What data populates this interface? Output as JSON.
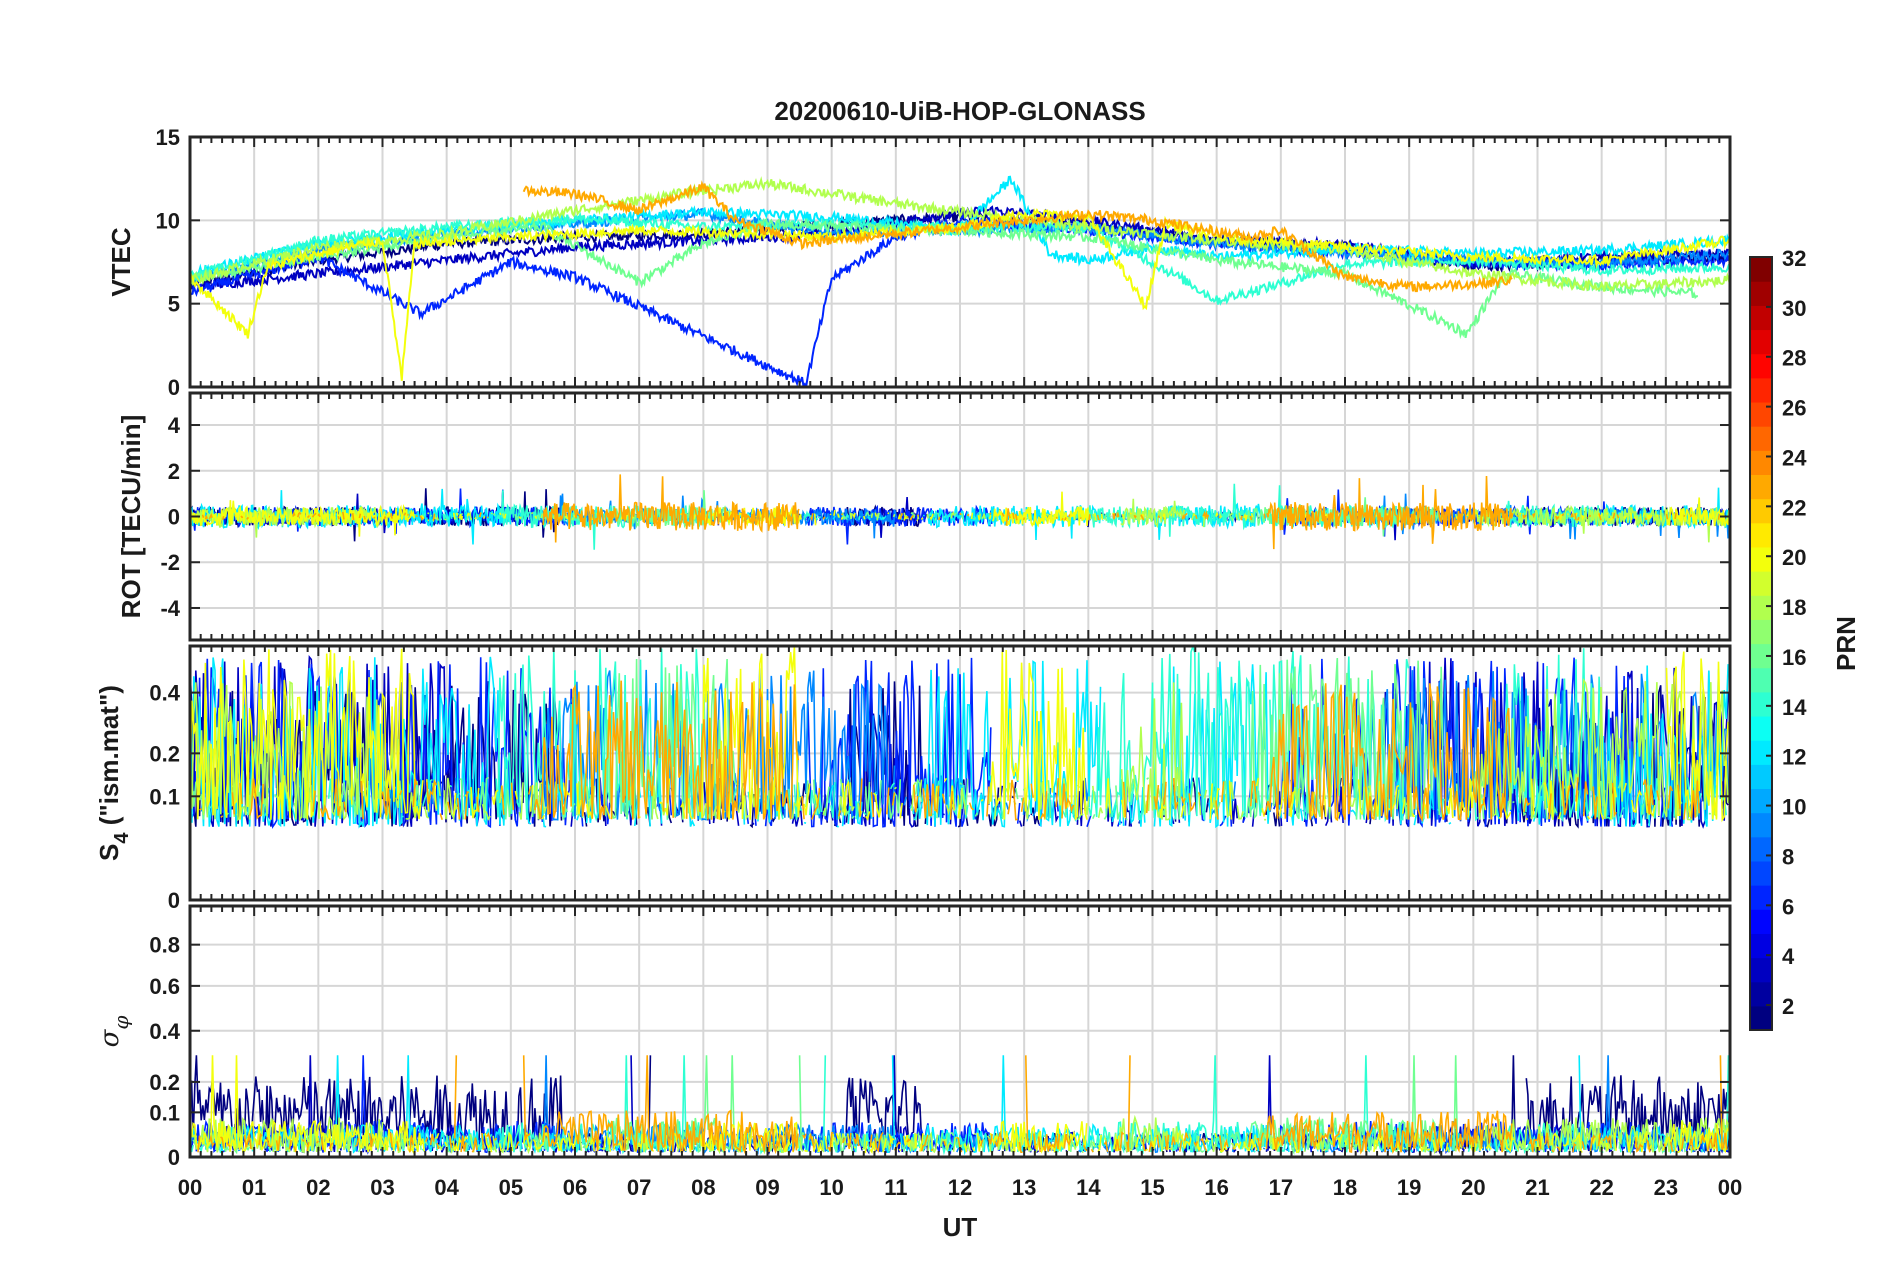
{
  "chart_data": {
    "title": "20200610-UiB-HOP-GLONASS",
    "type": "line",
    "x_axis": {
      "label": "UT",
      "range": [
        0,
        24
      ],
      "tick_labels": [
        "00",
        "01",
        "02",
        "03",
        "04",
        "05",
        "06",
        "07",
        "08",
        "09",
        "10",
        "11",
        "12",
        "13",
        "14",
        "15",
        "16",
        "17",
        "18",
        "19",
        "20",
        "21",
        "22",
        "23",
        "00"
      ]
    },
    "colorbar": {
      "label": "PRN",
      "range": [
        1,
        32
      ],
      "tick_values": [
        2,
        4,
        6,
        8,
        10,
        12,
        14,
        16,
        18,
        20,
        22,
        24,
        26,
        28,
        30,
        32
      ],
      "tick_labels": [
        "2",
        "4",
        "6",
        "8",
        "10",
        "12",
        "14",
        "16",
        "18",
        "20",
        "22",
        "24",
        "26",
        "28",
        "30",
        "32"
      ],
      "colormap": "jet"
    },
    "panels": [
      {
        "id": "vtec",
        "ylabel": "VTEC",
        "ylim": [
          0,
          15
        ],
        "yticks": [
          0,
          5,
          10,
          15
        ],
        "ytick_labels": [
          "0",
          "5",
          "10",
          "15"
        ]
      },
      {
        "id": "rot",
        "ylabel": "ROT [TECU/min]",
        "ylim": [
          -5.4,
          5.4
        ],
        "yticks": [
          -4,
          -2,
          0,
          2,
          4
        ],
        "ytick_labels": [
          "-4",
          "-2",
          "0",
          "2",
          "4"
        ]
      },
      {
        "id": "s4",
        "ylabel_main": "S",
        "ylabel_sub": "4",
        "ylabel_rest": " (\"ism.mat\")",
        "ylim": [
          0,
          0.6
        ],
        "yscale": "log-like",
        "yticks": [
          0,
          0.1,
          0.2,
          0.4
        ],
        "ytick_labels": [
          "0",
          "0.1",
          "0.2",
          "0.4"
        ]
      },
      {
        "id": "sigma",
        "ylabel_main": "σ",
        "ylabel_sub": "φ",
        "ylim": [
          0,
          1
        ],
        "yticks": [
          0,
          0.1,
          0.2,
          0.4,
          0.6,
          0.8
        ],
        "ytick_labels": [
          "0",
          "0.1",
          "0.2",
          "0.4",
          "0.6",
          "0.8"
        ]
      }
    ],
    "series": [
      {
        "prn": 1,
        "active": [
          [
            0,
            5.8
          ],
          [
            10.2,
            11.4
          ],
          [
            20.8,
            24
          ]
        ],
        "vtec": [
          [
            0,
            6.2
          ],
          [
            2,
            7.6
          ],
          [
            4,
            8.6
          ],
          [
            6,
            9
          ],
          [
            8,
            9.2
          ],
          [
            10,
            9.8
          ],
          [
            12,
            10.2
          ],
          [
            14,
            9.8
          ],
          [
            16,
            8.8
          ],
          [
            18,
            8.4
          ],
          [
            20,
            7.2
          ],
          [
            22,
            7.6
          ],
          [
            24,
            7.8
          ]
        ],
        "rot_amp": 0.6,
        "s4": [
          0.05,
          0.45
        ],
        "sigma": [
          0.06,
          0.22
        ]
      },
      {
        "prn": 3,
        "active": [
          [
            0,
            4.2
          ],
          [
            10.5,
            11.3
          ],
          [
            18.6,
            24
          ]
        ],
        "vtec": [
          [
            0,
            6.0
          ],
          [
            2,
            6.8
          ],
          [
            4,
            7.6
          ],
          [
            6,
            8.4
          ],
          [
            8,
            8.8
          ],
          [
            10,
            9.2
          ],
          [
            11.5,
            10.2
          ],
          [
            12.5,
            10.6
          ],
          [
            14,
            10
          ],
          [
            16,
            8.8
          ],
          [
            18,
            8.5
          ],
          [
            20,
            7.4
          ],
          [
            22,
            7.8
          ],
          [
            24,
            8
          ]
        ],
        "rot_amp": 0.5,
        "s4": [
          0.05,
          0.55
        ],
        "sigma": [
          0.02,
          0.06
        ]
      },
      {
        "prn": 6,
        "active": [
          [
            0,
            6
          ],
          [
            9.6,
            12.5
          ],
          [
            17,
            22.5
          ]
        ],
        "vtec": [
          [
            0,
            5.7
          ],
          [
            2,
            7.8
          ],
          [
            3.6,
            4.4
          ],
          [
            5,
            7.5
          ],
          [
            6,
            6.6
          ],
          [
            9.6,
            0.2
          ],
          [
            10,
            6.5
          ],
          [
            11,
            9.0
          ],
          [
            12,
            10
          ],
          [
            14,
            9.4
          ],
          [
            16,
            8.6
          ],
          [
            18,
            8.1
          ],
          [
            20,
            7.5
          ],
          [
            22,
            7.3
          ],
          [
            24,
            7.6
          ]
        ],
        "rot_amp": 0.6,
        "s4": [
          0.05,
          0.55
        ],
        "sigma": [
          0.02,
          0.07
        ]
      },
      {
        "prn": 9,
        "active": [
          [
            5.5,
            11
          ],
          [
            18.4,
            24
          ]
        ],
        "vtec": [
          [
            0,
            6.4
          ],
          [
            2,
            8.2
          ],
          [
            4,
            9.2
          ],
          [
            6,
            9.8
          ],
          [
            8,
            10.4
          ],
          [
            10,
            9.2
          ],
          [
            12,
            9.4
          ],
          [
            14,
            9.6
          ],
          [
            16,
            8.6
          ],
          [
            18,
            8.0
          ],
          [
            20,
            7.6
          ],
          [
            22,
            7.4
          ],
          [
            24,
            8.0
          ]
        ],
        "rot_amp": 0.5,
        "s4": [
          0.06,
          0.5
        ],
        "sigma": [
          0.02,
          0.06
        ]
      },
      {
        "prn": 12,
        "active": [
          [
            0,
            5
          ],
          [
            11.5,
            14.2
          ],
          [
            15,
            16.8
          ],
          [
            22,
            24
          ]
        ],
        "vtec": [
          [
            0,
            6.8
          ],
          [
            2,
            8.6
          ],
          [
            4,
            9.4
          ],
          [
            6,
            10
          ],
          [
            8,
            10.5
          ],
          [
            10,
            10.2
          ],
          [
            12,
            9.4
          ],
          [
            12.8,
            12.5
          ],
          [
            13.4,
            8.0
          ],
          [
            14,
            7.6
          ],
          [
            15,
            8.4
          ],
          [
            16,
            7.8
          ],
          [
            18,
            8.3
          ],
          [
            20,
            8.0
          ],
          [
            22,
            8.2
          ],
          [
            24,
            8.8
          ]
        ],
        "rot_amp": 0.7,
        "s4": [
          0.05,
          0.55
        ],
        "sigma": [
          0.02,
          0.06
        ]
      },
      {
        "prn": 14,
        "active": [
          [
            4.8,
            8
          ],
          [
            14,
            16.5
          ],
          [
            16.8,
            19
          ],
          [
            20.5,
            22
          ]
        ],
        "vtec": [
          [
            0,
            6.6
          ],
          [
            2,
            8.8
          ],
          [
            4,
            9.6
          ],
          [
            6,
            10.1
          ],
          [
            8,
            9.6
          ],
          [
            10,
            9.8
          ],
          [
            12,
            9.6
          ],
          [
            14,
            9.6
          ],
          [
            15.5,
            6.4
          ],
          [
            16,
            5.2
          ],
          [
            17,
            6.2
          ],
          [
            18,
            7.4
          ],
          [
            20,
            7.6
          ],
          [
            22,
            7.0
          ],
          [
            24,
            7.2
          ]
        ],
        "rot_amp": 0.7,
        "s4": [
          0.06,
          0.6
        ],
        "sigma": [
          0.02,
          0.07
        ]
      },
      {
        "prn": 16,
        "active": [
          [
            6.5,
            8.5
          ],
          [
            16.5,
            19.5
          ]
        ],
        "vtec": [
          [
            0,
            6.5
          ],
          [
            2,
            7.8
          ],
          [
            4,
            9.0
          ],
          [
            5.5,
            9.6
          ],
          [
            7,
            6.3
          ],
          [
            8,
            8.6
          ],
          [
            9,
            9.8
          ],
          [
            10,
            9.6
          ],
          [
            12,
            9.4
          ],
          [
            14,
            9.0
          ],
          [
            16,
            7.6
          ],
          [
            17,
            7.2
          ],
          [
            18,
            6.8
          ],
          [
            19.9,
            3.2
          ],
          [
            20.5,
            6.8
          ],
          [
            22,
            6.0
          ],
          [
            23.5,
            5.6
          ]
        ],
        "rot_amp": 0.6,
        "s4": [
          0.06,
          0.55
        ],
        "sigma": [
          0.02,
          0.08
        ]
      },
      {
        "prn": 18,
        "active": [
          [
            0,
            3
          ],
          [
            14.5,
            15.5
          ],
          [
            20,
            24
          ]
        ],
        "vtec": [
          [
            0,
            6.4
          ],
          [
            2,
            8.4
          ],
          [
            4,
            9.2
          ],
          [
            6,
            10.6
          ],
          [
            8,
            11.8
          ],
          [
            9,
            12.2
          ],
          [
            10,
            11.6
          ],
          [
            11,
            11.0
          ],
          [
            12,
            10.5
          ],
          [
            14,
            9.6
          ],
          [
            16,
            8.8
          ],
          [
            18,
            8.2
          ],
          [
            20,
            6.8
          ],
          [
            22,
            6.0
          ],
          [
            24,
            6.4
          ]
        ],
        "rot_amp": 0.6,
        "s4": [
          0.06,
          0.45
        ],
        "sigma": [
          0.03,
          0.08
        ]
      },
      {
        "prn": 20,
        "active": [
          [
            0,
            3.5
          ],
          [
            8,
            9.5
          ],
          [
            12.5,
            14
          ],
          [
            23,
            24
          ]
        ],
        "vtec": [
          [
            0,
            6.6
          ],
          [
            0.9,
            3.2
          ],
          [
            1.2,
            7.2
          ],
          [
            2,
            8.0
          ],
          [
            3,
            8.8
          ],
          [
            3.3,
            0.5
          ],
          [
            3.5,
            8.6
          ],
          [
            5,
            9.0
          ],
          [
            7,
            9.4
          ],
          [
            9,
            9.2
          ],
          [
            10,
            9.0
          ],
          [
            12,
            9.6
          ],
          [
            13,
            10.4
          ],
          [
            14,
            10.2
          ],
          [
            14.9,
            4.8
          ],
          [
            15.2,
            9.8
          ],
          [
            16,
            9.0
          ],
          [
            18,
            8.4
          ],
          [
            20,
            7.8
          ],
          [
            22,
            7.6
          ],
          [
            24,
            8.8
          ]
        ],
        "rot_amp": 0.6,
        "s4": [
          0.06,
          0.6
        ],
        "sigma": [
          0.02,
          0.07
        ]
      },
      {
        "prn": 23,
        "active": [
          [
            5.5,
            9.5
          ],
          [
            16.8,
            20.6
          ]
        ],
        "vtec": [
          [
            5.2,
            11.8
          ],
          [
            6,
            11.6
          ],
          [
            7,
            10.6
          ],
          [
            8,
            12.0
          ],
          [
            8.5,
            10.0
          ],
          [
            9,
            9.4
          ],
          [
            9.5,
            8.6
          ],
          [
            14,
            10.4
          ],
          [
            15,
            10.0
          ],
          [
            16.5,
            9.0
          ],
          [
            17,
            9.4
          ],
          [
            18,
            6.6
          ],
          [
            19,
            6.0
          ],
          [
            20,
            6.2
          ],
          [
            20.6,
            6.4
          ]
        ],
        "rot_amp": 0.9,
        "s4": [
          0.06,
          0.45
        ],
        "sigma": [
          0.03,
          0.1
        ]
      }
    ]
  }
}
